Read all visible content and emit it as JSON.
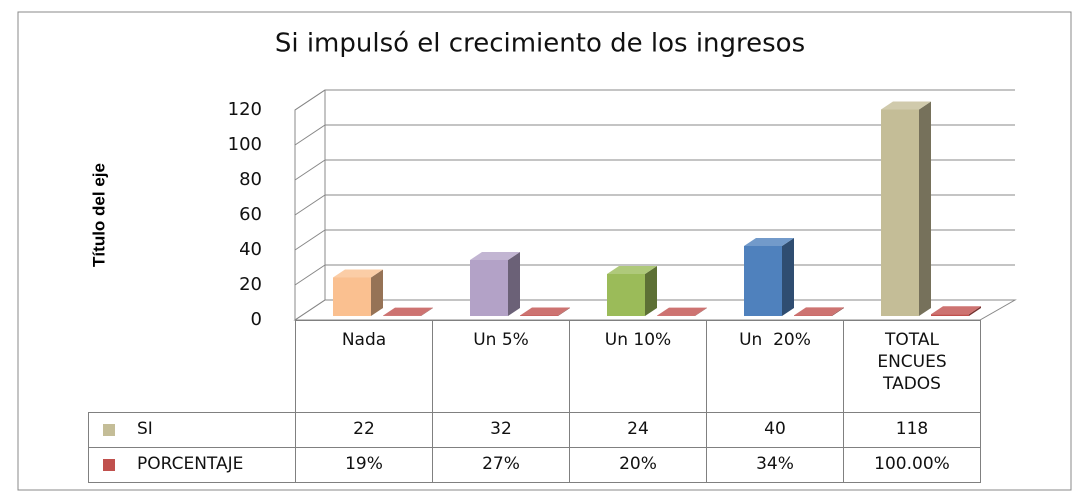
{
  "chart_data": {
    "type": "bar",
    "title": "Si impulsó el crecimiento de los ingresos",
    "y_label": "Título del eje",
    "categories": [
      "Nada",
      "Un 5%",
      "Un 10%",
      "Un  20%",
      "TOTAL ENCUES TADOS"
    ],
    "series": [
      {
        "name": "SI",
        "color": "#c4bd97",
        "colors": [
          "#fac090",
          "#b3a2c7",
          "#9bbb59",
          "#4f81bd",
          "#c4bd97"
        ],
        "values": [
          22,
          32,
          24,
          40,
          118
        ]
      },
      {
        "name": "PORCENTAJE",
        "color": "#c0504d",
        "values": [
          0.19,
          0.27,
          0.2,
          0.34,
          1
        ],
        "value_labels": [
          "19%",
          "27%",
          "20%",
          "34%",
          "100.00%"
        ]
      }
    ],
    "ylim": [
      0,
      120
    ],
    "yticks": [
      0,
      20,
      40,
      60,
      80,
      100,
      120
    ],
    "grid": true
  }
}
